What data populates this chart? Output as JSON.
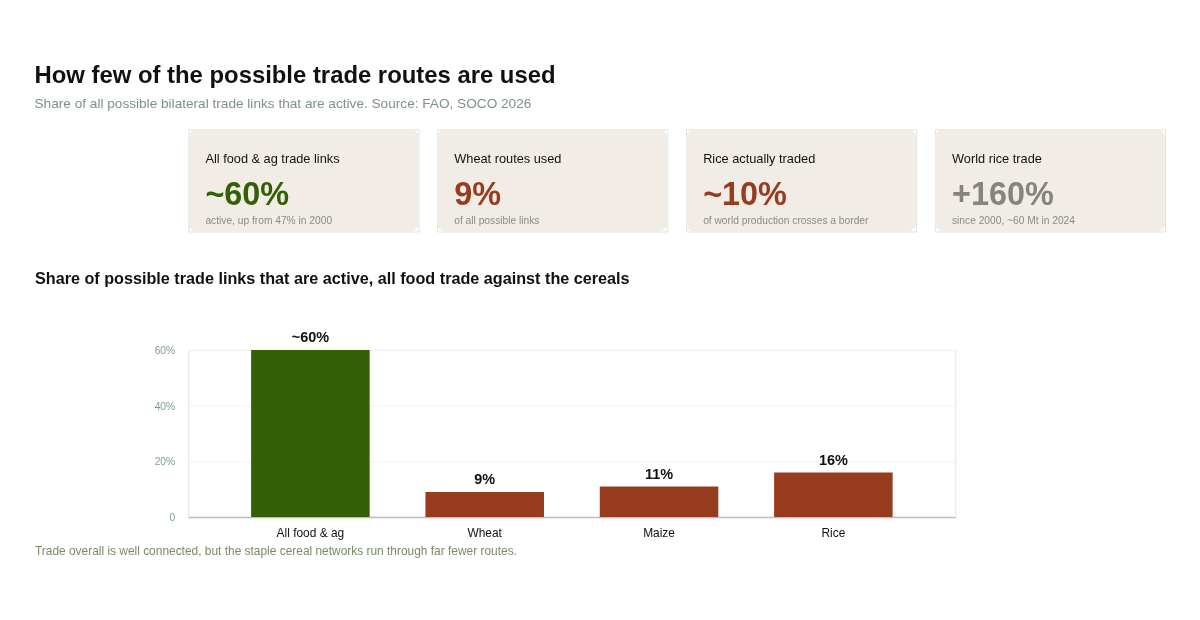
{
  "chart_data": [
    {
      "type": "other",
      "title": "How few of the possible trade routes are used",
      "subtitle": "Share of all possible bilateral trade links that are active. Source: FAO, SOCO 2026"
    },
    {
      "type": "other",
      "title": "All food & ag trade links",
      "annotations": [
        "~60%",
        "active, up from 47% in 2000"
      ],
      "color": "#336004"
    },
    {
      "type": "other",
      "title": "Wheat routes used",
      "annotations": [
        "9%",
        "of all possible links"
      ],
      "color": "#983c1f"
    },
    {
      "type": "other",
      "title": "Rice actually traded",
      "annotations": [
        "~10%",
        "of world production crosses a border"
      ],
      "color": "#983c1f"
    },
    {
      "type": "other",
      "title": "World rice trade",
      "annotations": [
        "+160%",
        "since 2000, ~60 Mt in 2024"
      ],
      "color": "#86847c"
    },
    {
      "type": "bar",
      "title": "Share of possible trade links that are active, all food trade against the cereals",
      "categories": [
        "All food & ag",
        "Wheat",
        "Maize",
        "Rice"
      ],
      "values": [
        60,
        9,
        11,
        16
      ],
      "colors": [
        "#336004",
        "#983c1f",
        "#983c1f",
        "#983c1f"
      ],
      "value_labels": [
        "~60%",
        "9%",
        "11%",
        "16%"
      ],
      "ylim": [
        0,
        60
      ],
      "yticks": [
        0,
        {
          "value": 20,
          "label": "20%"
        },
        {
          "value": 40,
          "label": "40%"
        },
        {
          "value": 60,
          "label": "60%"
        }
      ],
      "grid": "y",
      "legend": false,
      "annotations": [
        "Trade overall is well connected, but the staple cereal networks run through far fewer routes."
      ]
    }
  ]
}
